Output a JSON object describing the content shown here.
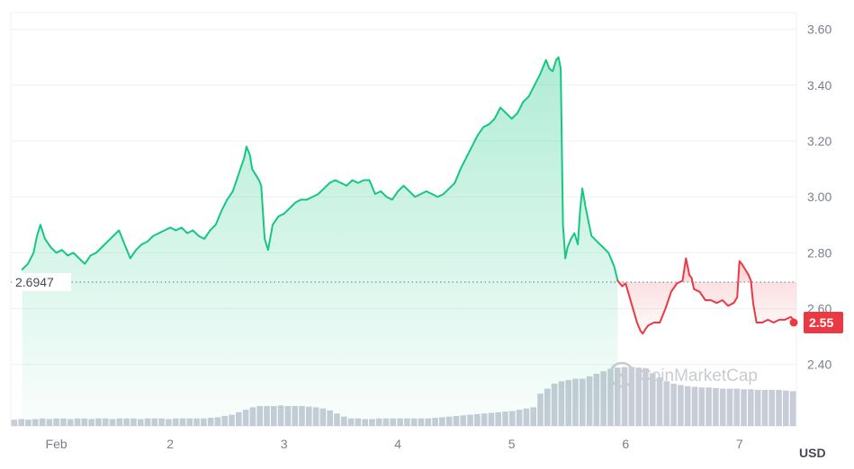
{
  "chart_data": {
    "type": "line",
    "quote_currency": "USD",
    "x_tick_labels": [
      "Feb",
      "2",
      "3",
      "4",
      "5",
      "6",
      "7"
    ],
    "x_tick_days": [
      1,
      2,
      3,
      4,
      5,
      6,
      7
    ],
    "x_range_days": [
      0.6,
      7.5
    ],
    "y_tick_labels": [
      "3.60",
      "3.40",
      "3.20",
      "3.00",
      "2.80",
      "2.60",
      "2.40"
    ],
    "y_ticks": [
      3.6,
      3.4,
      3.2,
      3.0,
      2.8,
      2.6,
      2.4
    ],
    "ylim": [
      2.18,
      3.66
    ],
    "grid": true,
    "reference_price": 2.6947,
    "reference_label": "2.6947",
    "last_price": 2.55,
    "last_label": "2.55",
    "up_color": "#16c784",
    "down_color": "#ea3943",
    "volume_color": "#c7ccd7",
    "watermark": "CoinMarketCap",
    "series": [
      {
        "x": [
          0.7,
          0.75,
          0.8,
          0.83,
          0.86,
          0.9,
          0.95,
          1.0,
          1.05,
          1.1,
          1.15,
          1.2,
          1.25,
          1.3,
          1.35,
          1.4,
          1.45,
          1.5,
          1.55,
          1.6,
          1.65,
          1.7,
          1.75,
          1.8,
          1.85,
          1.9,
          1.95,
          2.0,
          2.05,
          2.1,
          2.15,
          2.2,
          2.25,
          2.3,
          2.35,
          2.4,
          2.45,
          2.5,
          2.55,
          2.6,
          2.65,
          2.67,
          2.7,
          2.72,
          2.75,
          2.78,
          2.8,
          2.83,
          2.86,
          2.9,
          2.95,
          3.0,
          3.05,
          3.1,
          3.15,
          3.2,
          3.25,
          3.3,
          3.35,
          3.4,
          3.45,
          3.5,
          3.55,
          3.6,
          3.65,
          3.7,
          3.75,
          3.8,
          3.85,
          3.9,
          3.95,
          4.0,
          4.05,
          4.1,
          4.15,
          4.2,
          4.25,
          4.3,
          4.35,
          4.4,
          4.45,
          4.5,
          4.55,
          4.6,
          4.65,
          4.7,
          4.75,
          4.8,
          4.85,
          4.9,
          4.95,
          5.0,
          5.05,
          5.1,
          5.15,
          5.2,
          5.25,
          5.28,
          5.3,
          5.33,
          5.36,
          5.39,
          5.41,
          5.43,
          5.45,
          5.47,
          5.49,
          5.52,
          5.55,
          5.58,
          5.6,
          5.62,
          5.65,
          5.68,
          5.7,
          5.75,
          5.8,
          5.85,
          5.9,
          5.93
        ],
        "values": [
          2.74,
          2.76,
          2.8,
          2.86,
          2.9,
          2.85,
          2.82,
          2.8,
          2.81,
          2.79,
          2.8,
          2.78,
          2.76,
          2.79,
          2.8,
          2.82,
          2.84,
          2.86,
          2.88,
          2.83,
          2.78,
          2.81,
          2.83,
          2.84,
          2.86,
          2.87,
          2.88,
          2.89,
          2.88,
          2.89,
          2.87,
          2.88,
          2.86,
          2.85,
          2.88,
          2.9,
          2.95,
          2.99,
          3.02,
          3.08,
          3.14,
          3.18,
          3.15,
          3.1,
          3.08,
          3.06,
          3.04,
          2.85,
          2.81,
          2.9,
          2.93,
          2.94,
          2.96,
          2.98,
          2.99,
          2.99,
          3.0,
          3.01,
          3.03,
          3.05,
          3.06,
          3.05,
          3.04,
          3.06,
          3.05,
          3.06,
          3.06,
          3.01,
          3.02,
          3.0,
          2.99,
          3.02,
          3.04,
          3.02,
          3.0,
          3.01,
          3.02,
          3.01,
          3.0,
          3.01,
          3.03,
          3.05,
          3.1,
          3.14,
          3.18,
          3.22,
          3.25,
          3.26,
          3.28,
          3.32,
          3.3,
          3.28,
          3.3,
          3.34,
          3.36,
          3.4,
          3.44,
          3.47,
          3.49,
          3.46,
          3.45,
          3.49,
          3.5,
          3.46,
          2.9,
          2.78,
          2.82,
          2.85,
          2.87,
          2.83,
          2.95,
          3.03,
          2.96,
          2.9,
          2.86,
          2.84,
          2.82,
          2.8,
          2.75,
          2.7
        ]
      },
      {
        "x": [
          5.93,
          5.97,
          6.0,
          6.05,
          6.1,
          6.13,
          6.15,
          6.18,
          6.2,
          6.25,
          6.3,
          6.35,
          6.4,
          6.45,
          6.5,
          6.53,
          6.56,
          6.58,
          6.6,
          6.65,
          6.7,
          6.75,
          6.8,
          6.85,
          6.9,
          6.95,
          6.98,
          7.0,
          7.02,
          7.05,
          7.08,
          7.1,
          7.12,
          7.15,
          7.2,
          7.25,
          7.3,
          7.35,
          7.4,
          7.45,
          7.5
        ],
        "values": [
          2.7,
          2.68,
          2.69,
          2.62,
          2.55,
          2.52,
          2.51,
          2.53,
          2.54,
          2.55,
          2.55,
          2.6,
          2.66,
          2.69,
          2.7,
          2.78,
          2.72,
          2.71,
          2.67,
          2.66,
          2.63,
          2.63,
          2.62,
          2.63,
          2.61,
          2.62,
          2.64,
          2.77,
          2.76,
          2.74,
          2.72,
          2.7,
          2.62,
          2.55,
          2.55,
          2.56,
          2.55,
          2.56,
          2.56,
          2.57,
          2.55
        ]
      }
    ],
    "volume": [
      0.1,
      0.11,
      0.1,
      0.11,
      0.12,
      0.11,
      0.12,
      0.12,
      0.11,
      0.12,
      0.12,
      0.11,
      0.12,
      0.12,
      0.11,
      0.12,
      0.12,
      0.12,
      0.11,
      0.12,
      0.12,
      0.12,
      0.11,
      0.12,
      0.12,
      0.12,
      0.12,
      0.12,
      0.13,
      0.14,
      0.16,
      0.18,
      0.22,
      0.26,
      0.3,
      0.32,
      0.32,
      0.32,
      0.33,
      0.32,
      0.32,
      0.32,
      0.31,
      0.3,
      0.28,
      0.25,
      0.2,
      0.15,
      0.12,
      0.12,
      0.11,
      0.11,
      0.12,
      0.12,
      0.12,
      0.12,
      0.12,
      0.12,
      0.12,
      0.12,
      0.13,
      0.14,
      0.15,
      0.16,
      0.17,
      0.18,
      0.19,
      0.2,
      0.21,
      0.22,
      0.23,
      0.24,
      0.26,
      0.28,
      0.3,
      0.52,
      0.6,
      0.68,
      0.72,
      0.74,
      0.76,
      0.76,
      0.8,
      0.84,
      0.88,
      0.92,
      0.94,
      0.95,
      0.95,
      0.94,
      0.93,
      0.85,
      0.78,
      0.72,
      0.68,
      0.66,
      0.64,
      0.63,
      0.62,
      0.62,
      0.61,
      0.6,
      0.6,
      0.6,
      0.59,
      0.59,
      0.58,
      0.58,
      0.58,
      0.58,
      0.57,
      0.56
    ]
  }
}
